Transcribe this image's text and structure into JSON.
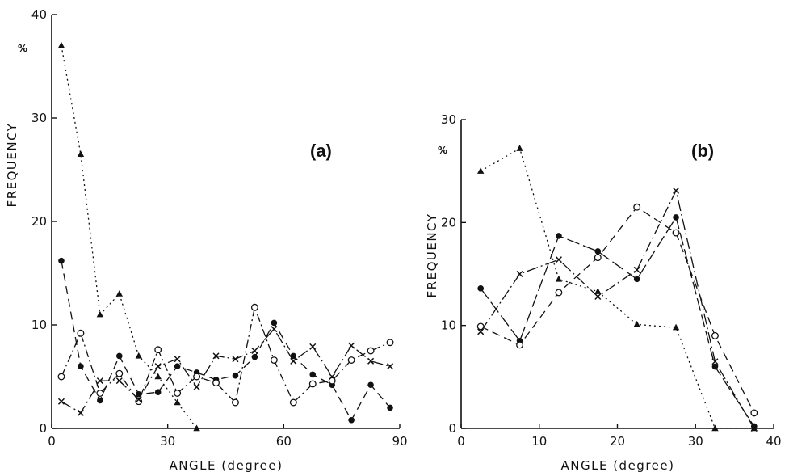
{
  "chart_data": [
    {
      "panel_label": "(a)",
      "type": "line",
      "xlabel": "ANGLE (degree)",
      "ylabel": "FREQUENCY",
      "yunit": "%",
      "xlim": [
        0,
        90
      ],
      "ylim": [
        0,
        40
      ],
      "xticks": [
        0,
        30,
        60,
        90
      ],
      "yticks": [
        0,
        10,
        20,
        30,
        40
      ],
      "ytick_labels": [
        "0",
        "10",
        "20",
        "30",
        "40"
      ],
      "grid": false,
      "series": [
        {
          "marker": "triangle",
          "dash": "dotted",
          "x": [
            2.5,
            7.5,
            12.5,
            17.5,
            22.5,
            27.5,
            32.5,
            37.5
          ],
          "y": [
            37,
            26.5,
            11,
            13,
            7,
            5,
            2.5,
            0
          ]
        },
        {
          "marker": "filled-circle",
          "dash": "dashed",
          "x": [
            2.5,
            7.5,
            12.5,
            17.5,
            22.5,
            27.5,
            32.5,
            37.5,
            42.5,
            47.5,
            52.5,
            57.5,
            62.5,
            67.5,
            72.5,
            77.5,
            82.5,
            87.5
          ],
          "y": [
            16.2,
            6,
            2.7,
            7,
            3.3,
            3.5,
            6,
            5.4,
            4.7,
            5.1,
            6.9,
            10.2,
            7,
            5.2,
            4.2,
            0.8,
            4.2,
            2
          ]
        },
        {
          "marker": "open-circle",
          "dash": "dash-dot",
          "x": [
            2.5,
            7.5,
            12.5,
            17.5,
            22.5,
            27.5,
            32.5,
            37.5,
            42.5,
            47.5,
            52.5,
            57.5,
            62.5,
            67.5,
            72.5,
            77.5,
            82.5,
            87.5
          ],
          "y": [
            5,
            9.2,
            3.4,
            5.3,
            2.6,
            7.6,
            3.4,
            5,
            4.4,
            2.5,
            11.7,
            6.6,
            2.5,
            4.3,
            4.6,
            6.6,
            7.5,
            8.3
          ]
        },
        {
          "marker": "cross",
          "dash": "solid-dashdot",
          "x": [
            2.5,
            7.5,
            12.5,
            17.5,
            22.5,
            27.5,
            32.5,
            37.5,
            42.5,
            47.5,
            52.5,
            57.5,
            62.5,
            67.5,
            72.5,
            77.5,
            82.5,
            87.5
          ],
          "y": [
            2.6,
            1.5,
            4.6,
            4.6,
            2.8,
            6,
            6.7,
            4,
            7,
            6.7,
            7.5,
            9.6,
            6.5,
            7.9,
            5,
            8,
            6.5,
            6
          ]
        }
      ]
    },
    {
      "panel_label": "(b)",
      "type": "line",
      "xlabel": "ANGLE (degree)",
      "ylabel": "FREQUENCY",
      "yunit": "%",
      "xlim": [
        0,
        40
      ],
      "ylim": [
        0,
        30
      ],
      "xticks": [
        0,
        10,
        20,
        30,
        40
      ],
      "yticks": [
        0,
        10,
        20,
        30
      ],
      "ytick_labels": [
        "0",
        "10",
        "20",
        "30"
      ],
      "grid": false,
      "series": [
        {
          "marker": "triangle",
          "dash": "dotted",
          "x": [
            2.5,
            7.5,
            12.5,
            17.5,
            22.5,
            27.5,
            32.5,
            37.5
          ],
          "y": [
            25,
            27.2,
            14.5,
            13.3,
            10.1,
            9.8,
            0,
            0
          ]
        },
        {
          "marker": "filled-circle",
          "dash": "solid-dashed",
          "x": [
            2.5,
            7.5,
            12.5,
            17.5,
            22.5,
            27.5,
            32.5,
            37.5
          ],
          "y": [
            13.6,
            8.5,
            18.7,
            17.2,
            14.5,
            20.5,
            6,
            0.2
          ]
        },
        {
          "marker": "open-circle",
          "dash": "dashed",
          "x": [
            2.5,
            7.5,
            12.5,
            17.5,
            22.5,
            27.5,
            32.5,
            37.5
          ],
          "y": [
            9.9,
            8.1,
            13.2,
            16.6,
            21.5,
            19,
            9,
            1.5
          ]
        },
        {
          "marker": "cross",
          "dash": "solid-dashdot",
          "x": [
            2.5,
            7.5,
            12.5,
            17.5,
            22.5,
            27.5,
            32.5,
            37.5
          ],
          "y": [
            9.4,
            15,
            16.4,
            12.8,
            15.4,
            23.1,
            6.5,
            0
          ]
        }
      ]
    }
  ]
}
